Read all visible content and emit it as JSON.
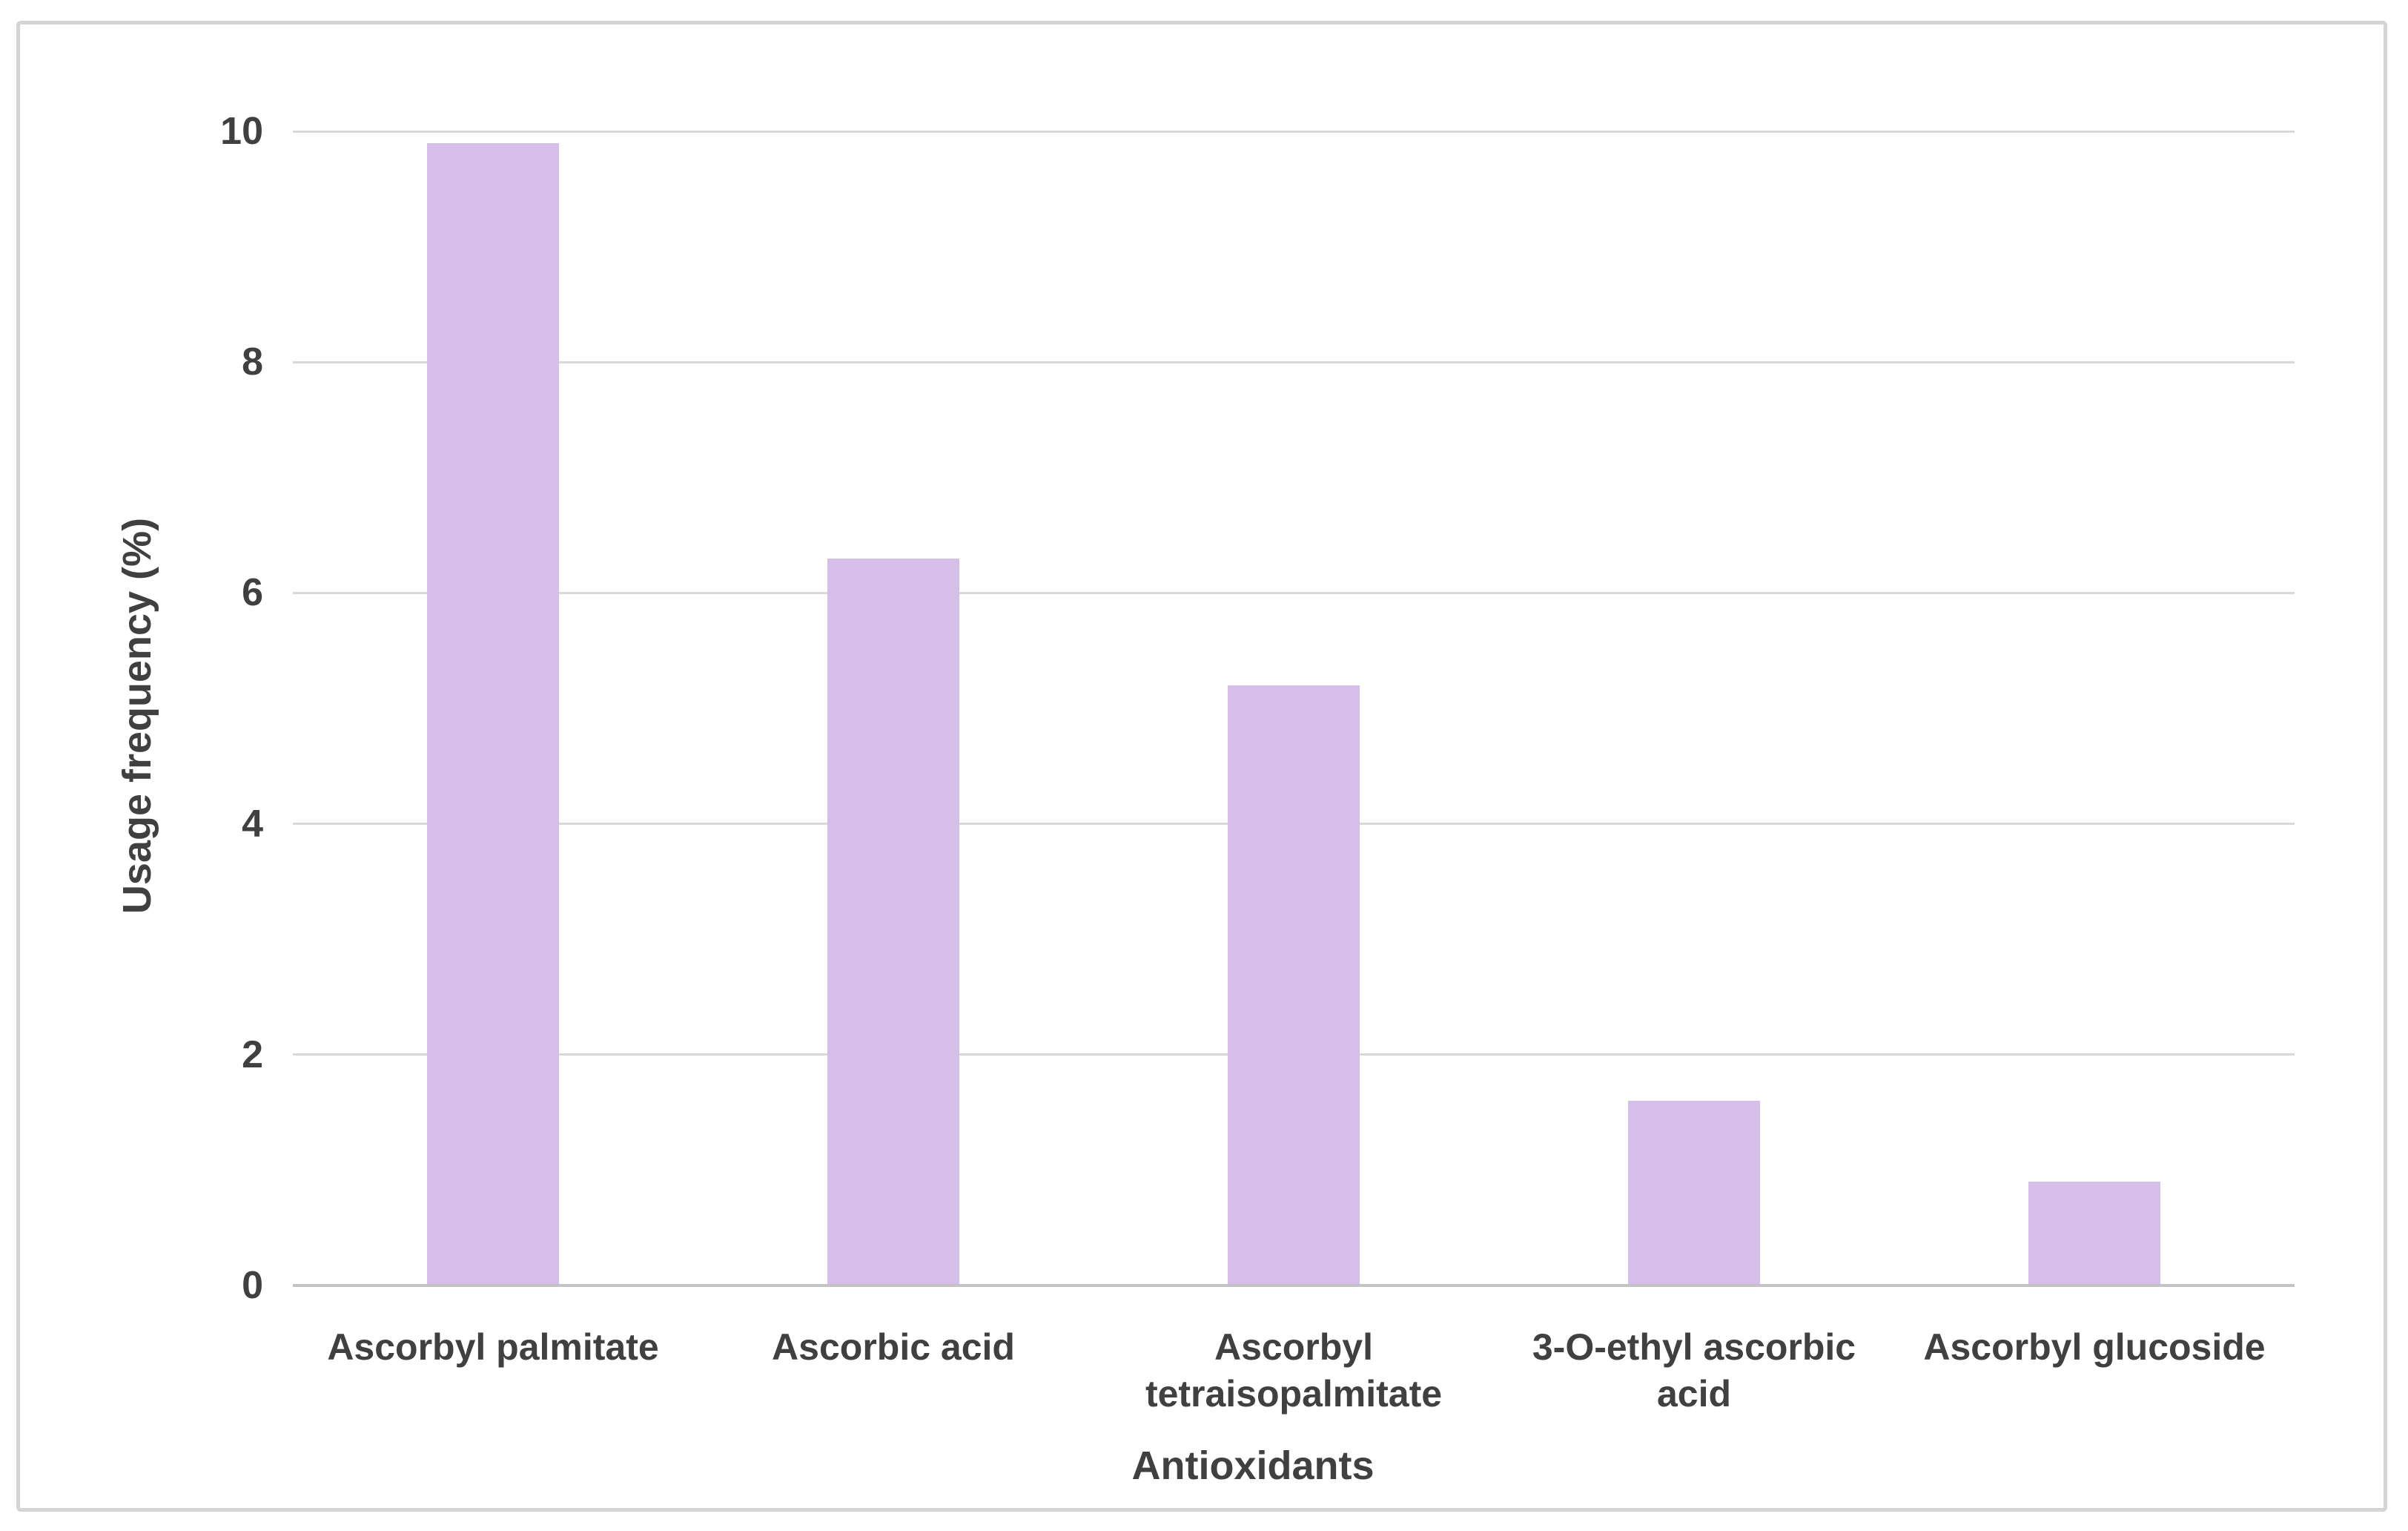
{
  "chart_data": {
    "type": "bar",
    "title": "",
    "categories": [
      "Ascorbyl palmitate",
      "Ascorbic acid",
      "Ascorbyl tetraisopalmitate",
      "3-O-ethyl ascorbic acid",
      "Ascorbyl glucoside"
    ],
    "values": [
      9.9,
      6.3,
      5.2,
      1.6,
      0.9
    ],
    "xlabel": "Antioxidants",
    "ylabel": "Usage frequency (%)",
    "ylim": [
      0,
      10
    ],
    "yticks": [
      0,
      2,
      4,
      6,
      8,
      10
    ],
    "grid": true,
    "legend": "none",
    "bar_color": "#d5bfe9",
    "gridline_color": "#d9d9d9",
    "axis_line_color": "#c3c3c3",
    "text_color": "#404040",
    "frame_border_color": "#d4d4d4",
    "background_color": "#ffffff"
  }
}
